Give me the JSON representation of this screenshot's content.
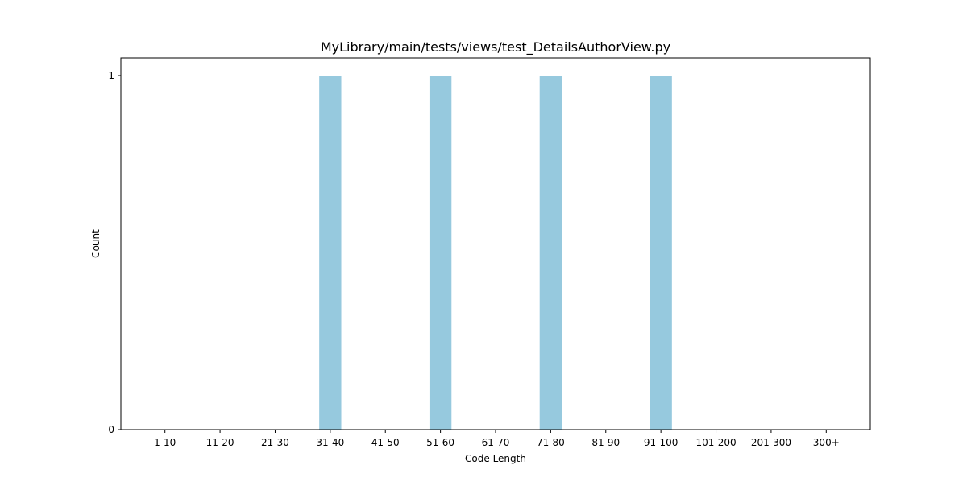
{
  "chart_data": {
    "type": "bar",
    "title": "MyLibrary/main/tests/views/test_DetailsAuthorView.py",
    "xlabel": "Code Length",
    "ylabel": "Count",
    "categories": [
      "1-10",
      "11-20",
      "21-30",
      "31-40",
      "41-50",
      "51-60",
      "61-70",
      "71-80",
      "81-90",
      "91-100",
      "101-200",
      "201-300",
      "300+"
    ],
    "values": [
      0,
      0,
      0,
      1,
      0,
      1,
      0,
      1,
      0,
      1,
      0,
      0,
      0
    ],
    "ylim": [
      0,
      1.05
    ],
    "yticks": [
      0,
      1
    ],
    "bar_color": "#96c9de",
    "grid": false,
    "legend": "none"
  }
}
